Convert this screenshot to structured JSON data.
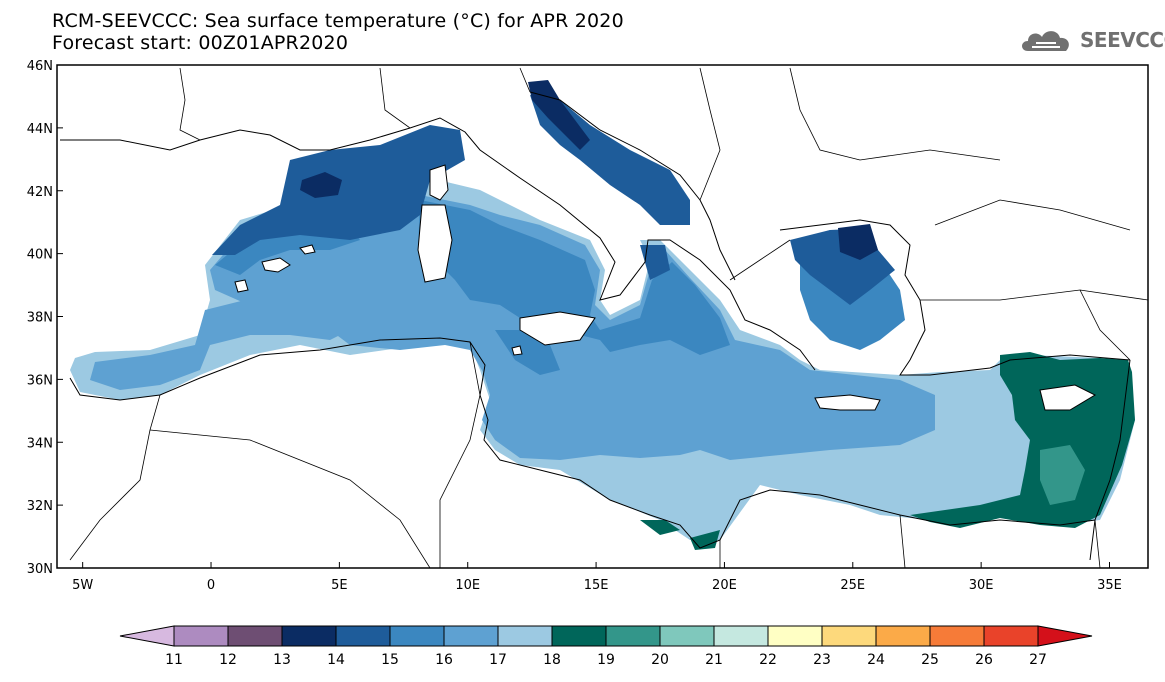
{
  "title": {
    "line1": "RCM-SEEVCCC: Sea surface temperature (°C) for APR 2020",
    "line2": "Forecast start: 00Z01APR2020"
  },
  "logo": {
    "text": "SEEVCCC",
    "icon": "cloud-icon"
  },
  "map": {
    "lon_range": [
      -6,
      36.5
    ],
    "lat_range": [
      30,
      46
    ],
    "lat_ticks": [
      {
        "value": 46,
        "label": "46N"
      },
      {
        "value": 44,
        "label": "44N"
      },
      {
        "value": 42,
        "label": "42N"
      },
      {
        "value": 40,
        "label": "40N"
      },
      {
        "value": 38,
        "label": "38N"
      },
      {
        "value": 36,
        "label": "36N"
      },
      {
        "value": 34,
        "label": "34N"
      },
      {
        "value": 32,
        "label": "32N"
      },
      {
        "value": 30,
        "label": "30N"
      }
    ],
    "lon_ticks": [
      {
        "value": -5,
        "label": "5W"
      },
      {
        "value": 0,
        "label": "0"
      },
      {
        "value": 5,
        "label": "5E"
      },
      {
        "value": 10,
        "label": "10E"
      },
      {
        "value": 15,
        "label": "15E"
      },
      {
        "value": 20,
        "label": "20E"
      },
      {
        "value": 25,
        "label": "25E"
      },
      {
        "value": 30,
        "label": "30E"
      },
      {
        "value": 35,
        "label": "35E"
      }
    ],
    "land_color": "#ffffff",
    "border_color": "#000000"
  },
  "colorbar": {
    "labels": [
      "11",
      "12",
      "13",
      "14",
      "15",
      "16",
      "17",
      "18",
      "19",
      "20",
      "21",
      "22",
      "23",
      "24",
      "25",
      "26",
      "27"
    ],
    "colors": [
      "#ad8bc0",
      "#6e4e73",
      "#0b2c63",
      "#1e5c9a",
      "#3b87c0",
      "#5ea1d2",
      "#9cc9e2",
      "#00665a",
      "#33968a",
      "#7fc8bc",
      "#c5e8e0",
      "#ffffc4",
      "#fdd97c",
      "#fbaa48",
      "#f67b38",
      "#e9432a"
    ],
    "under_color": "#d7b9e0",
    "over_color": "#d4101a"
  }
}
